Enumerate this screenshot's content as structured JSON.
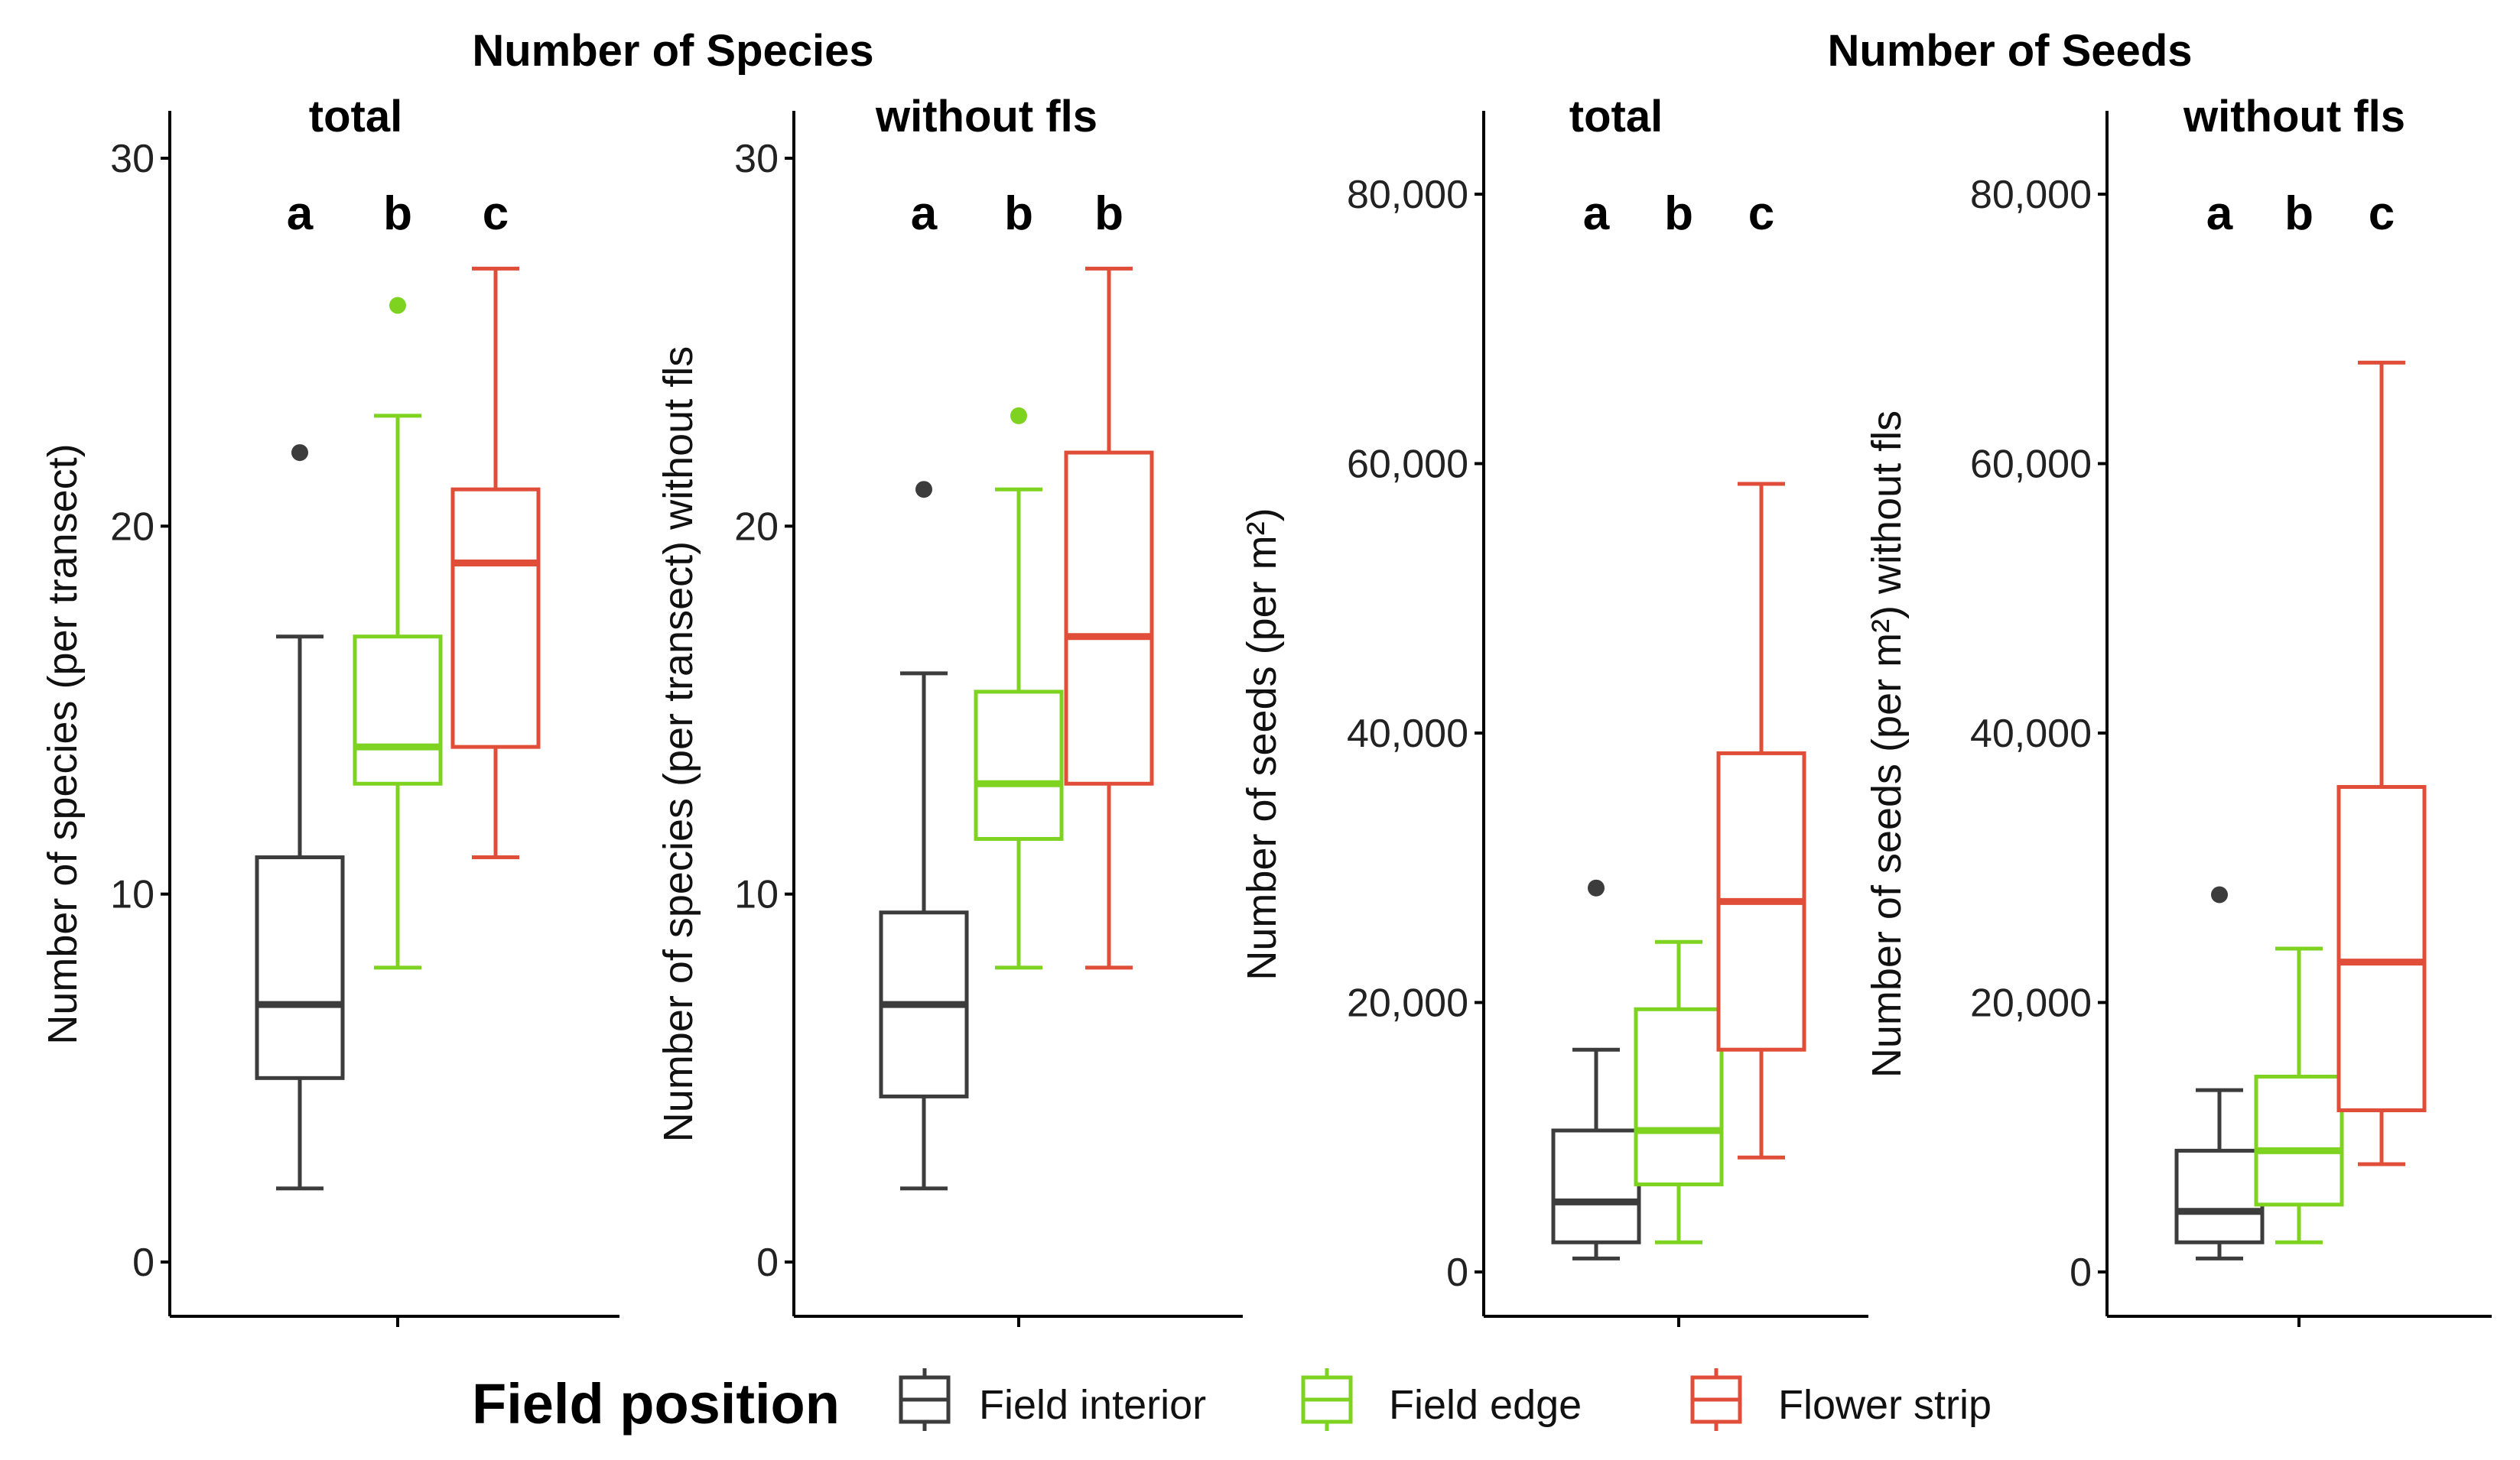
{
  "chart_data": {
    "type": "boxplot",
    "groups": [
      {
        "title": "Number of Species"
      },
      {
        "title": "Number of Seeds"
      }
    ],
    "legend": {
      "title": "Field position",
      "entries": [
        "Field interior",
        "Field edge",
        "Flower strip"
      ]
    },
    "colors": {
      "Field interior": "#3c3c3c",
      "Field edge": "#7ed321",
      "Flower strip": "#e04e39"
    },
    "panels": [
      {
        "title": "total",
        "ylabel": "Number of species (per transect)",
        "ylim": [
          0,
          30
        ],
        "yticks": [
          "0",
          "10",
          "20",
          "30"
        ],
        "tick_values": [
          0,
          10,
          20,
          30
        ],
        "letters": [
          "a",
          "b",
          "c"
        ],
        "boxes": [
          {
            "series": "Field interior",
            "whisker_low": 2,
            "q1": 5,
            "median": 7,
            "q3": 11,
            "whisker_high": 17,
            "outliers": [
              22
            ]
          },
          {
            "series": "Field edge",
            "whisker_low": 8,
            "q1": 13,
            "median": 14,
            "q3": 17,
            "whisker_high": 23,
            "outliers": [
              26
            ]
          },
          {
            "series": "Flower strip",
            "whisker_low": 11,
            "q1": 14,
            "median": 19,
            "q3": 21,
            "whisker_high": 27,
            "outliers": []
          }
        ]
      },
      {
        "title": "without fls",
        "ylabel": "Number of species (per transect) without fls",
        "ylim": [
          0,
          30
        ],
        "yticks": [
          "0",
          "10",
          "20",
          "30"
        ],
        "tick_values": [
          0,
          10,
          20,
          30
        ],
        "letters": [
          "a",
          "b",
          "b"
        ],
        "boxes": [
          {
            "series": "Field interior",
            "whisker_low": 2,
            "q1": 4.5,
            "median": 7,
            "q3": 9.5,
            "whisker_high": 16,
            "outliers": [
              21
            ]
          },
          {
            "series": "Field edge",
            "whisker_low": 8,
            "q1": 11.5,
            "median": 13,
            "q3": 15.5,
            "whisker_high": 21,
            "outliers": [
              23
            ]
          },
          {
            "series": "Flower strip",
            "whisker_low": 8,
            "q1": 13,
            "median": 17,
            "q3": 22,
            "whisker_high": 27,
            "outliers": []
          }
        ]
      },
      {
        "title": "total",
        "ylabel": "Number of seeds (per m²)",
        "ylim": [
          0,
          80000
        ],
        "yticks": [
          "0",
          "20,000",
          "40,000",
          "60,000",
          "80,000"
        ],
        "tick_values": [
          0,
          20000,
          40000,
          60000,
          80000
        ],
        "letters": [
          "a",
          "b",
          "c"
        ],
        "boxes": [
          {
            "series": "Field interior",
            "whisker_low": 1000,
            "q1": 2200,
            "median": 5200,
            "q3": 10500,
            "whisker_high": 16500,
            "outliers": [
              28500
            ]
          },
          {
            "series": "Field edge",
            "whisker_low": 2200,
            "q1": 6500,
            "median": 10500,
            "q3": 19500,
            "whisker_high": 24500,
            "outliers": []
          },
          {
            "series": "Flower strip",
            "whisker_low": 8500,
            "q1": 16500,
            "median": 27500,
            "q3": 38500,
            "whisker_high": 58500,
            "outliers": []
          }
        ]
      },
      {
        "title": "without fls",
        "ylabel": "Number of seeds (per m²) without fls",
        "ylim": [
          0,
          80000
        ],
        "yticks": [
          "0",
          "20,000",
          "40,000",
          "60,000",
          "80,000"
        ],
        "tick_values": [
          0,
          20000,
          40000,
          60000,
          80000
        ],
        "letters": [
          "a",
          "b",
          "c"
        ],
        "boxes": [
          {
            "series": "Field interior",
            "whisker_low": 1000,
            "q1": 2200,
            "median": 4500,
            "q3": 9000,
            "whisker_high": 13500,
            "outliers": [
              28000
            ]
          },
          {
            "series": "Field edge",
            "whisker_low": 2200,
            "q1": 5000,
            "median": 9000,
            "q3": 14500,
            "whisker_high": 24000,
            "outliers": []
          },
          {
            "series": "Flower strip",
            "whisker_low": 8000,
            "q1": 12000,
            "median": 23000,
            "q3": 36000,
            "whisker_high": 67500,
            "outliers": []
          }
        ]
      }
    ]
  }
}
